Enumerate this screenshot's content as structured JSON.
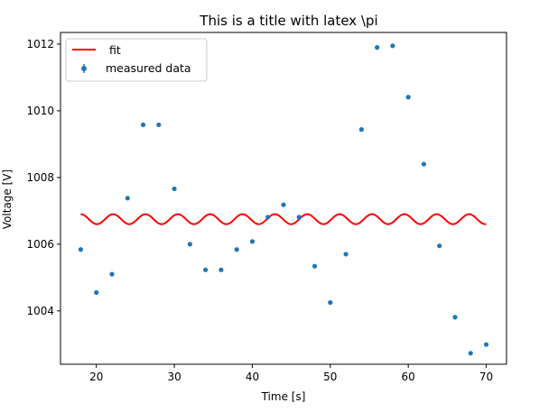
{
  "chart_data": {
    "type": "scatter",
    "title": "This is a title with latex \\pi",
    "xlabel": "Time [s]",
    "ylabel": "Voltage [V]",
    "xlim": [
      15.4,
      72.6
    ],
    "ylim": [
      1002.4,
      1012.35
    ],
    "xticks": [
      20,
      30,
      40,
      50,
      60,
      70
    ],
    "yticks": [
      1004,
      1006,
      1008,
      1010,
      1012
    ],
    "grid": false,
    "legend_position": "upper-left",
    "series": [
      {
        "name": "measured data",
        "kind": "scatter",
        "color": "#1f77b4",
        "x": [
          18,
          20,
          22,
          24,
          26,
          28,
          30,
          32,
          34,
          36,
          38,
          40,
          42,
          44,
          46,
          48,
          50,
          52,
          54,
          56,
          58,
          60,
          62,
          64,
          66,
          68,
          70
        ],
        "y": [
          1005.84,
          1004.55,
          1005.1,
          1007.38,
          1009.58,
          1009.58,
          1007.66,
          1006.0,
          1005.23,
          1005.23,
          1005.84,
          1006.08,
          1006.81,
          1007.18,
          1006.81,
          1005.34,
          1004.25,
          1005.7,
          1009.44,
          1011.9,
          1011.95,
          1010.41,
          1008.4,
          1005.95,
          1003.81,
          1002.73,
          1002.99
        ]
      },
      {
        "name": " fit",
        "kind": "line",
        "color": "#ff0000",
        "x_start": 18,
        "x_end": 70,
        "offset": 1006.75,
        "amplitude": 0.15,
        "period": 4.15
      }
    ]
  }
}
